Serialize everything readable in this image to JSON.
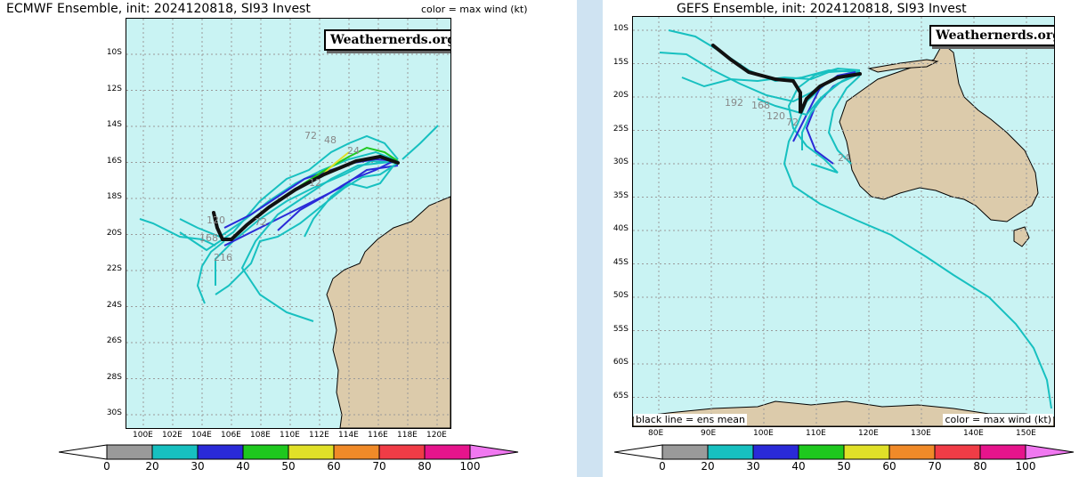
{
  "left": {
    "title": "ECMWF Ensemble, init: 2024120818, SI93 Invest",
    "legend_note": "color = max wind (kt)",
    "logo": "Weathernerds.org",
    "lat_labels": [
      "10S",
      "12S",
      "14S",
      "16S",
      "18S",
      "20S",
      "22S",
      "24S",
      "26S",
      "28S",
      "30S"
    ],
    "lon_labels": [
      "100E",
      "102E",
      "104E",
      "106E",
      "108E",
      "110E",
      "112E",
      "114E",
      "116E",
      "118E",
      "120E"
    ],
    "track_hour_labels": [
      "72",
      "48",
      "24",
      "12",
      "72",
      "120",
      "168",
      "216"
    ],
    "colorbar_labels": [
      "0",
      "20",
      "30",
      "40",
      "50",
      "60",
      "70",
      "80",
      "100"
    ]
  },
  "right": {
    "title": "GEFS Ensemble, init: 2024120818, SI93 Invest",
    "logo": "Weathernerds.org",
    "lat_labels": [
      "10S",
      "15S",
      "20S",
      "25S",
      "30S",
      "35S",
      "40S",
      "45S",
      "50S",
      "55S",
      "60S",
      "65S"
    ],
    "lon_labels": [
      "80E",
      "90E",
      "100E",
      "110E",
      "120E",
      "130E",
      "140E",
      "150E"
    ],
    "mean_note": "black line = ens mean",
    "legend_note": "color = max wind (kt)",
    "track_hour_labels": [
      "192",
      "168",
      "120",
      "72",
      "24"
    ],
    "colorbar_labels": [
      "0",
      "20",
      "30",
      "40",
      "50",
      "60",
      "70",
      "80",
      "100"
    ]
  },
  "colors": {
    "ocean": "#c9f3f3",
    "land": "#dccbab",
    "grid": "#9a9a9a",
    "mean_track": "#111111",
    "wind_scale": [
      "#ffffff",
      "#9a9a9a",
      "#17c0c0",
      "#2a2ad8",
      "#1ec81e",
      "#e0e028",
      "#f08a28",
      "#f03c46",
      "#e6148c",
      "#f078f0"
    ]
  }
}
